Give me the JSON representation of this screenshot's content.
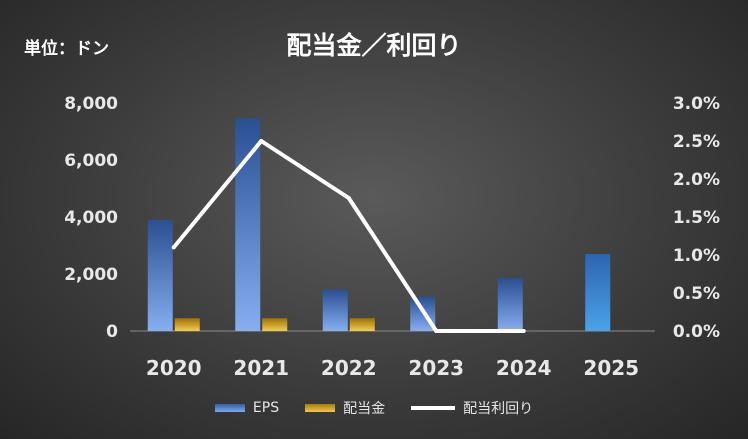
{
  "unit_label": "単位：ドン",
  "chart_data": {
    "type": "bar",
    "title": "配当金／利回り",
    "categories": [
      "2020",
      "2021",
      "2022",
      "2023",
      "2024",
      "2025"
    ],
    "series": [
      {
        "name": "EPS",
        "type": "bar",
        "axis": "left",
        "color": "#4a7fd4",
        "values": [
          3900,
          7450,
          1450,
          1200,
          1850,
          2700
        ]
      },
      {
        "name": "配当金",
        "type": "bar",
        "axis": "left",
        "color": "#d4a017",
        "values": [
          450,
          450,
          450,
          0,
          0,
          null
        ]
      },
      {
        "name": "配当利回り",
        "type": "line",
        "axis": "right",
        "color": "#ffffff",
        "values": [
          1.1,
          2.5,
          1.75,
          0.0,
          0.0,
          null
        ]
      }
    ],
    "y_left": {
      "min": 0,
      "max": 8000,
      "ticks": [
        0,
        2000,
        4000,
        6000,
        8000
      ],
      "tick_labels": [
        "0",
        "2,000",
        "4,000",
        "6,000",
        "8,000"
      ]
    },
    "y_right": {
      "min": 0,
      "max": 3.0,
      "unit": "%",
      "ticks": [
        0,
        0.5,
        1.0,
        1.5,
        2.0,
        2.5,
        3.0
      ],
      "tick_labels": [
        "0.0%",
        "0.5%",
        "1.0%",
        "1.5%",
        "2.0%",
        "2.5%",
        "3.0%"
      ]
    },
    "grid": false,
    "legend_position": "bottom"
  }
}
